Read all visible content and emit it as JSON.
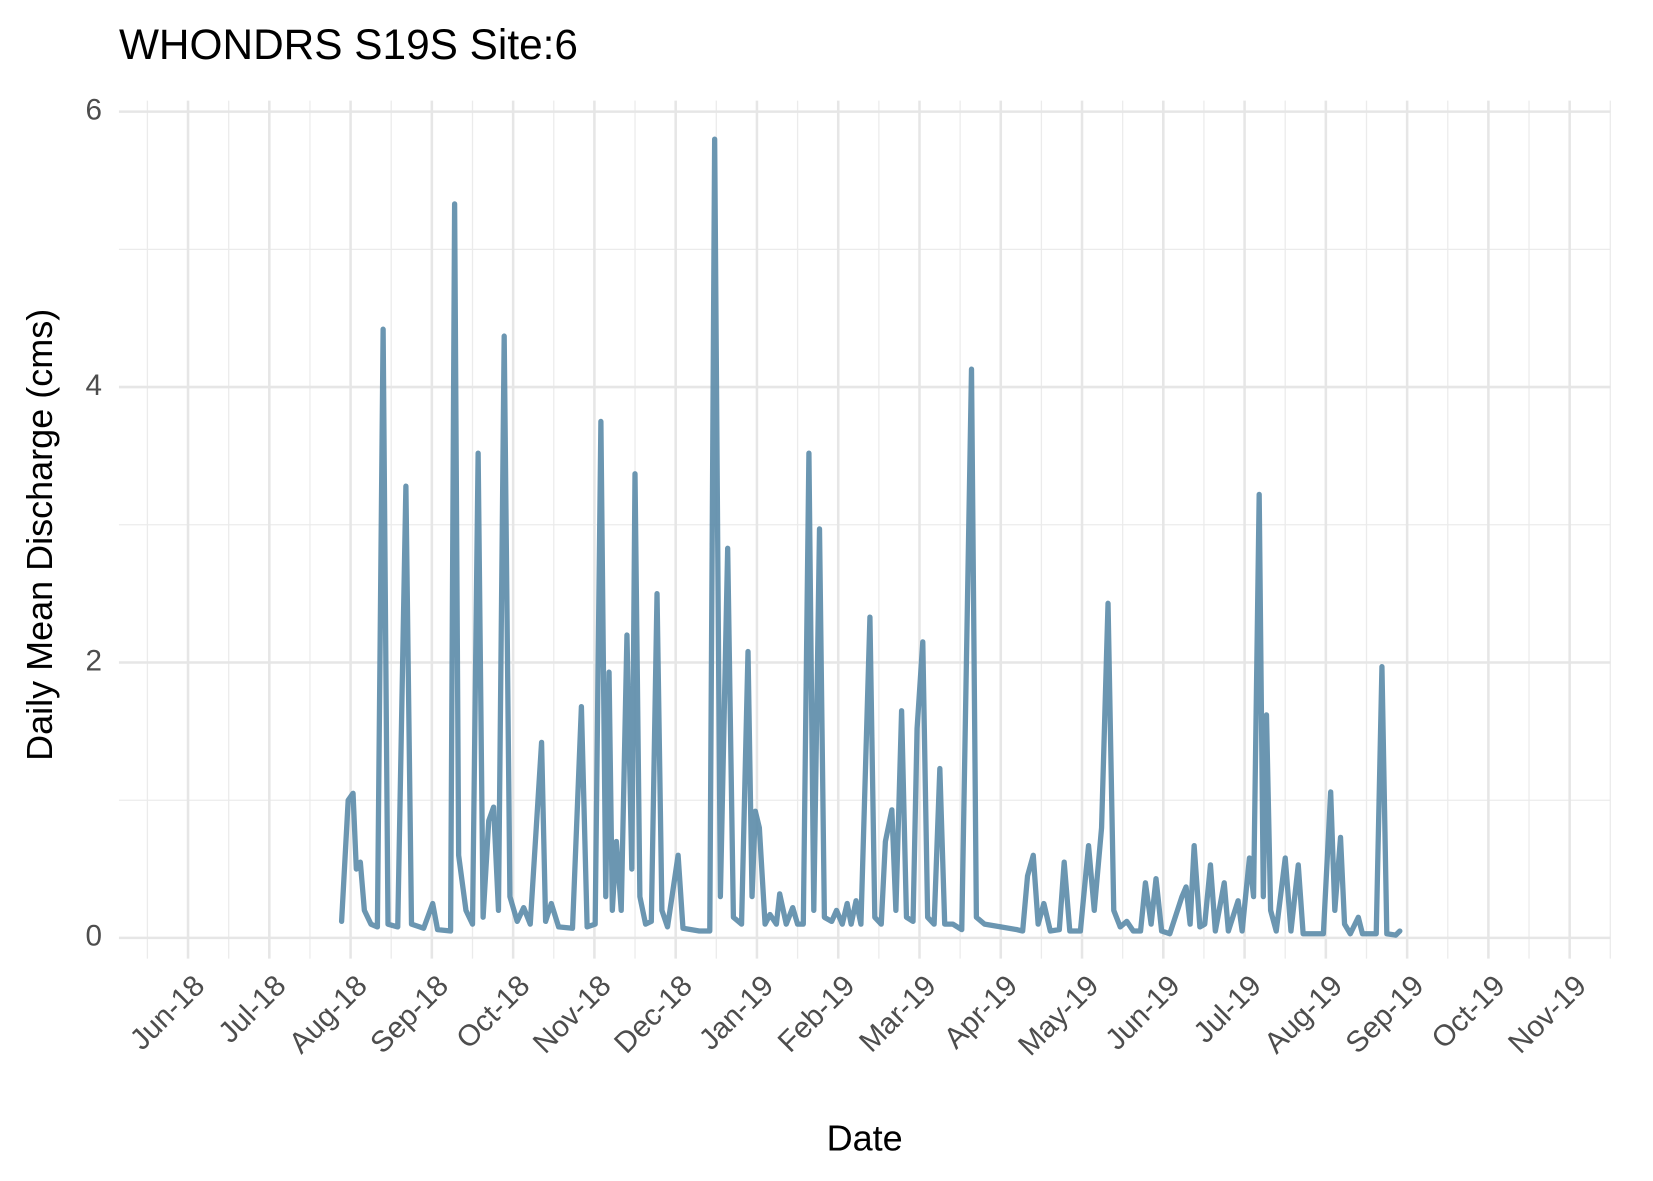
{
  "chart_data": {
    "type": "line",
    "title": "WHONDRS S19S Site:6",
    "x_label": "Date",
    "y_label": "Daily Mean Discharge (cms)",
    "xlim": [
      5.15,
      23.5
    ],
    "ylim": [
      -0.15,
      6.08
    ],
    "xticks": [
      {
        "value": 6,
        "label": "Jun-18"
      },
      {
        "value": 7,
        "label": "Jul-18"
      },
      {
        "value": 8,
        "label": "Aug-18"
      },
      {
        "value": 9,
        "label": "Sep-18"
      },
      {
        "value": 10,
        "label": "Oct-18"
      },
      {
        "value": 11,
        "label": "Nov-18"
      },
      {
        "value": 12,
        "label": "Dec-18"
      },
      {
        "value": 13,
        "label": "Jan-19"
      },
      {
        "value": 14,
        "label": "Feb-19"
      },
      {
        "value": 15,
        "label": "Mar-19"
      },
      {
        "value": 16,
        "label": "Apr-19"
      },
      {
        "value": 17,
        "label": "May-19"
      },
      {
        "value": 18,
        "label": "Jun-19"
      },
      {
        "value": 19,
        "label": "Jul-19"
      },
      {
        "value": 20,
        "label": "Aug-19"
      },
      {
        "value": 21,
        "label": "Sep-19"
      },
      {
        "value": 22,
        "label": "Oct-19"
      },
      {
        "value": 23,
        "label": "Nov-19"
      }
    ],
    "yticks": [
      0,
      2,
      4,
      6
    ],
    "grid": true,
    "series": [
      {
        "color": "#5b8ba9",
        "x": [
          7.89,
          7.97,
          8.03,
          8.07,
          8.12,
          8.17,
          8.25,
          8.33,
          8.4,
          8.46,
          8.58,
          8.68,
          8.75,
          8.9,
          9.01,
          9.07,
          9.23,
          9.28,
          9.33,
          9.42,
          9.5,
          9.57,
          9.63,
          9.7,
          9.76,
          9.82,
          9.89,
          9.96,
          10.05,
          10.13,
          10.21,
          10.35,
          10.4,
          10.47,
          10.56,
          10.73,
          10.84,
          10.91,
          11.01,
          11.08,
          11.14,
          11.18,
          11.22,
          11.27,
          11.33,
          11.4,
          11.46,
          11.5,
          11.56,
          11.63,
          11.7,
          11.77,
          11.83,
          11.9,
          12.03,
          12.09,
          12.29,
          12.42,
          12.48,
          12.55,
          12.64,
          12.71,
          12.81,
          12.89,
          12.94,
          12.98,
          13.03,
          13.1,
          13.16,
          13.24,
          13.28,
          13.36,
          13.44,
          13.5,
          13.57,
          13.64,
          13.7,
          13.77,
          13.83,
          13.92,
          13.98,
          14.05,
          14.11,
          14.16,
          14.22,
          14.28,
          14.39,
          14.45,
          14.53,
          14.58,
          14.66,
          14.71,
          14.78,
          14.84,
          14.92,
          14.97,
          15.04,
          15.1,
          15.18,
          15.25,
          15.31,
          15.41,
          15.52,
          15.64,
          15.7,
          15.8,
          16.0,
          16.2,
          16.27,
          16.33,
          16.4,
          16.46,
          16.53,
          16.61,
          16.72,
          16.78,
          16.85,
          16.98,
          17.08,
          17.15,
          17.24,
          17.32,
          17.39,
          17.47,
          17.55,
          17.63,
          17.72,
          17.78,
          17.85,
          17.91,
          17.98,
          18.08,
          18.23,
          18.28,
          18.33,
          18.38,
          18.45,
          18.51,
          18.58,
          18.64,
          18.75,
          18.8,
          18.92,
          18.97,
          19.06,
          19.11,
          19.18,
          19.23,
          19.27,
          19.32,
          19.39,
          19.5,
          19.57,
          19.66,
          19.72,
          19.84,
          19.97,
          20.06,
          20.11,
          20.18,
          20.23,
          20.3,
          20.4,
          20.45,
          20.62,
          20.69,
          20.75,
          20.86,
          20.91
        ],
        "values": [
          0.12,
          1.0,
          1.05,
          0.5,
          0.55,
          0.2,
          0.1,
          0.08,
          4.42,
          0.1,
          0.08,
          3.28,
          0.1,
          0.07,
          0.25,
          0.06,
          0.05,
          5.33,
          0.6,
          0.2,
          0.1,
          3.52,
          0.15,
          0.85,
          0.95,
          0.2,
          4.37,
          0.3,
          0.12,
          0.22,
          0.1,
          1.42,
          0.12,
          0.25,
          0.08,
          0.07,
          1.68,
          0.08,
          0.1,
          3.75,
          0.3,
          1.93,
          0.2,
          0.7,
          0.2,
          2.2,
          0.5,
          3.37,
          0.3,
          0.1,
          0.12,
          2.5,
          0.2,
          0.08,
          0.6,
          0.07,
          0.05,
          0.05,
          5.8,
          0.3,
          2.83,
          0.15,
          0.1,
          2.08,
          0.3,
          0.92,
          0.8,
          0.1,
          0.17,
          0.1,
          0.32,
          0.1,
          0.22,
          0.1,
          0.1,
          3.52,
          0.2,
          2.97,
          0.15,
          0.12,
          0.2,
          0.1,
          0.25,
          0.1,
          0.27,
          0.1,
          2.33,
          0.15,
          0.1,
          0.7,
          0.93,
          0.2,
          1.65,
          0.15,
          0.12,
          1.52,
          2.15,
          0.15,
          0.1,
          1.23,
          0.1,
          0.1,
          0.06,
          4.13,
          0.15,
          0.1,
          0.08,
          0.06,
          0.05,
          0.45,
          0.6,
          0.1,
          0.25,
          0.05,
          0.06,
          0.55,
          0.05,
          0.05,
          0.67,
          0.2,
          0.8,
          2.43,
          0.2,
          0.08,
          0.12,
          0.05,
          0.05,
          0.4,
          0.1,
          0.43,
          0.05,
          0.03,
          0.3,
          0.37,
          0.1,
          0.67,
          0.08,
          0.1,
          0.53,
          0.05,
          0.4,
          0.05,
          0.27,
          0.05,
          0.58,
          0.3,
          3.22,
          0.3,
          1.62,
          0.2,
          0.05,
          0.58,
          0.05,
          0.53,
          0.03,
          0.03,
          0.03,
          1.06,
          0.2,
          0.73,
          0.1,
          0.03,
          0.15,
          0.03,
          0.03,
          1.97,
          0.03,
          0.02,
          0.05
        ]
      }
    ]
  }
}
